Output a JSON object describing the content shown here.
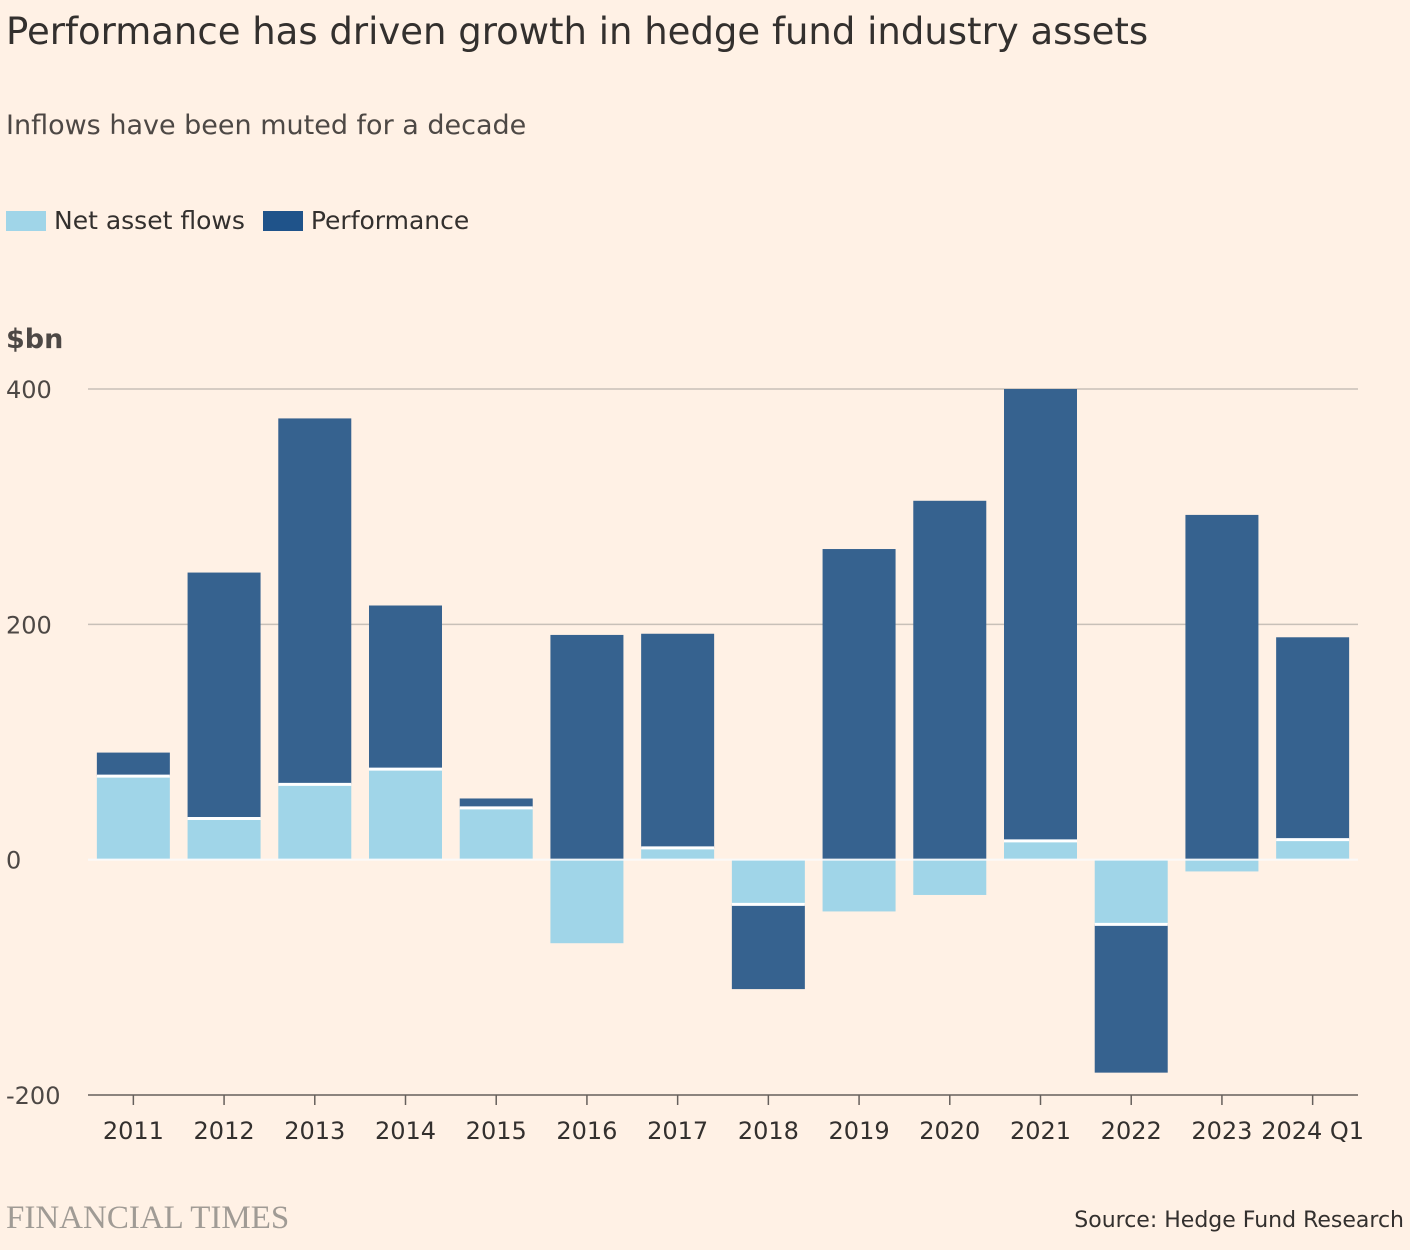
{
  "title": "Performance has driven growth in hedge fund industry assets",
  "subtitle": "Inflows have been muted for a decade",
  "unit": "$bn",
  "legend": {
    "flows_label": "Net asset flows",
    "performance_label": "Performance"
  },
  "colors": {
    "flows": "#a0d5e8",
    "performance": "#1f538a",
    "performance_fill": "#36628f",
    "gridline": "#c8c0b8",
    "axis": "#66605c",
    "background": "#fff1e5"
  },
  "source": "Source: Hedge Fund Research",
  "brand": "FINANCIAL TIMES",
  "chart_data": {
    "type": "bar",
    "stacked": true,
    "categories": [
      "2011",
      "2012",
      "2013",
      "2014",
      "2015",
      "2016",
      "2017",
      "2018",
      "2019",
      "2020",
      "2021",
      "2022",
      "2023",
      "2024 Q1"
    ],
    "series": [
      {
        "name": "Net asset flows",
        "values": [
          71,
          35,
          64,
          77,
          44,
          -71,
          10,
          -38,
          -44,
          -30,
          16,
          -55,
          -10,
          17
        ]
      },
      {
        "name": "Performance",
        "values": [
          20,
          209,
          311,
          139,
          8,
          191,
          182,
          -72,
          264,
          305,
          384,
          -126,
          293,
          172
        ]
      }
    ],
    "yticks": [
      -200,
      0,
      200,
      400
    ],
    "ylim": [
      -200,
      400
    ],
    "ylabel": "$bn",
    "grid": true,
    "legend_position": "top-left"
  }
}
